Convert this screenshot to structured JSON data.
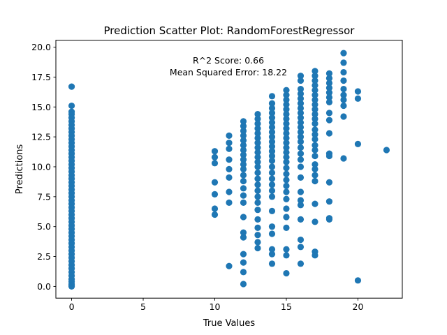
{
  "chart_data": {
    "type": "scatter",
    "title": "Prediction Scatter Plot: RandomForestRegressor",
    "xlabel": "True Values",
    "ylabel": "Predictions",
    "xlim": [
      -1.1,
      23.1
    ],
    "ylim": [
      -0.98,
      20.58
    ],
    "xticks": [
      0,
      5,
      10,
      15,
      20
    ],
    "yticks": [
      0.0,
      2.5,
      5.0,
      7.5,
      10.0,
      12.5,
      15.0,
      17.5,
      20.0
    ],
    "grid": false,
    "legend": "none",
    "marker_color": "#1f77b4",
    "annotations": [
      "R^2 Score: 0.66",
      "Mean Squared Error: 18.22"
    ],
    "points": [
      [
        0,
        16.7
      ],
      [
        0,
        15.1
      ],
      [
        0,
        14.6
      ],
      [
        0,
        14.4
      ],
      [
        0,
        14.1
      ],
      [
        0,
        13.8
      ],
      [
        0,
        13.5
      ],
      [
        0,
        13.2
      ],
      [
        0,
        12.9
      ],
      [
        0,
        12.6
      ],
      [
        0,
        12.3
      ],
      [
        0,
        12.0
      ],
      [
        0,
        11.7
      ],
      [
        0,
        11.4
      ],
      [
        0,
        11.1
      ],
      [
        0,
        10.8
      ],
      [
        0,
        10.5
      ],
      [
        0,
        10.2
      ],
      [
        0,
        9.9
      ],
      [
        0,
        9.6
      ],
      [
        0,
        9.3
      ],
      [
        0,
        9.0
      ],
      [
        0,
        8.7
      ],
      [
        0,
        8.4
      ],
      [
        0,
        8.1
      ],
      [
        0,
        7.8
      ],
      [
        0,
        7.5
      ],
      [
        0,
        7.2
      ],
      [
        0,
        6.9
      ],
      [
        0,
        6.6
      ],
      [
        0,
        6.3
      ],
      [
        0,
        6.0
      ],
      [
        0,
        5.7
      ],
      [
        0,
        5.4
      ],
      [
        0,
        5.1
      ],
      [
        0,
        4.8
      ],
      [
        0,
        4.5
      ],
      [
        0,
        4.2
      ],
      [
        0,
        3.9
      ],
      [
        0,
        3.6
      ],
      [
        0,
        3.3
      ],
      [
        0,
        3.0
      ],
      [
        0,
        2.7
      ],
      [
        0,
        2.4
      ],
      [
        0,
        2.1
      ],
      [
        0,
        1.8
      ],
      [
        0,
        1.5
      ],
      [
        0,
        1.2
      ],
      [
        0,
        0.9
      ],
      [
        0,
        0.6
      ],
      [
        0,
        0.4
      ],
      [
        0,
        0.2
      ],
      [
        0,
        0.1
      ],
      [
        0,
        0.0
      ],
      [
        10,
        11.3
      ],
      [
        10,
        10.8
      ],
      [
        10,
        10.3
      ],
      [
        10,
        8.7
      ],
      [
        10,
        7.7
      ],
      [
        10,
        6.5
      ],
      [
        10,
        6.0
      ],
      [
        11,
        12.6
      ],
      [
        11,
        12.0
      ],
      [
        11,
        11.5
      ],
      [
        11,
        10.6
      ],
      [
        11,
        9.8
      ],
      [
        11,
        9.1
      ],
      [
        11,
        7.9
      ],
      [
        11,
        7.0
      ],
      [
        11,
        1.7
      ],
      [
        12,
        13.8
      ],
      [
        12,
        13.4
      ],
      [
        12,
        13.0
      ],
      [
        12,
        12.6
      ],
      [
        12,
        12.2
      ],
      [
        12,
        11.8
      ],
      [
        12,
        11.4
      ],
      [
        12,
        11.0
      ],
      [
        12,
        10.6
      ],
      [
        12,
        10.2
      ],
      [
        12,
        9.8
      ],
      [
        12,
        9.3
      ],
      [
        12,
        8.8
      ],
      [
        12,
        8.2
      ],
      [
        12,
        7.6
      ],
      [
        12,
        7.0
      ],
      [
        12,
        5.8
      ],
      [
        12,
        4.5
      ],
      [
        12,
        4.1
      ],
      [
        12,
        2.7
      ],
      [
        12,
        2.0
      ],
      [
        12,
        1.2
      ],
      [
        12,
        0.2
      ],
      [
        13,
        14.4
      ],
      [
        13,
        14.0
      ],
      [
        13,
        13.6
      ],
      [
        13,
        13.2
      ],
      [
        13,
        12.8
      ],
      [
        13,
        12.4
      ],
      [
        13,
        12.0
      ],
      [
        13,
        11.6
      ],
      [
        13,
        11.2
      ],
      [
        13,
        10.8
      ],
      [
        13,
        10.4
      ],
      [
        13,
        10.0
      ],
      [
        13,
        9.5
      ],
      [
        13,
        9.0
      ],
      [
        13,
        8.5
      ],
      [
        13,
        8.0
      ],
      [
        13,
        7.5
      ],
      [
        13,
        7.0
      ],
      [
        13,
        6.4
      ],
      [
        13,
        5.6
      ],
      [
        13,
        4.9
      ],
      [
        13,
        4.3
      ],
      [
        13,
        3.7
      ],
      [
        13,
        3.2
      ],
      [
        14,
        15.9
      ],
      [
        14,
        15.3
      ],
      [
        14,
        14.9
      ],
      [
        14,
        14.5
      ],
      [
        14,
        14.1
      ],
      [
        14,
        13.7
      ],
      [
        14,
        13.3
      ],
      [
        14,
        12.9
      ],
      [
        14,
        12.5
      ],
      [
        14,
        12.1
      ],
      [
        14,
        11.7
      ],
      [
        14,
        11.3
      ],
      [
        14,
        10.9
      ],
      [
        14,
        10.5
      ],
      [
        14,
        10.0
      ],
      [
        14,
        9.5
      ],
      [
        14,
        9.0
      ],
      [
        14,
        8.5
      ],
      [
        14,
        8.0
      ],
      [
        14,
        7.5
      ],
      [
        14,
        6.3
      ],
      [
        14,
        5.0
      ],
      [
        14,
        4.4
      ],
      [
        14,
        3.1
      ],
      [
        14,
        2.7
      ],
      [
        14,
        1.9
      ],
      [
        15,
        16.4
      ],
      [
        15,
        16.0
      ],
      [
        15,
        15.6
      ],
      [
        15,
        15.2
      ],
      [
        15,
        14.8
      ],
      [
        15,
        14.4
      ],
      [
        15,
        14.0
      ],
      [
        15,
        13.6
      ],
      [
        15,
        13.2
      ],
      [
        15,
        12.8
      ],
      [
        15,
        12.4
      ],
      [
        15,
        12.0
      ],
      [
        15,
        11.6
      ],
      [
        15,
        11.2
      ],
      [
        15,
        10.8
      ],
      [
        15,
        10.4
      ],
      [
        15,
        9.9
      ],
      [
        15,
        9.4
      ],
      [
        15,
        8.9
      ],
      [
        15,
        8.4
      ],
      [
        15,
        7.9
      ],
      [
        15,
        7.3
      ],
      [
        15,
        6.5
      ],
      [
        15,
        5.8
      ],
      [
        15,
        4.9
      ],
      [
        15,
        3.1
      ],
      [
        15,
        2.6
      ],
      [
        15,
        1.1
      ],
      [
        16,
        17.6
      ],
      [
        16,
        17.2
      ],
      [
        16,
        16.5
      ],
      [
        16,
        16.1
      ],
      [
        16,
        15.7
      ],
      [
        16,
        15.3
      ],
      [
        16,
        14.9
      ],
      [
        16,
        14.5
      ],
      [
        16,
        14.1
      ],
      [
        16,
        13.7
      ],
      [
        16,
        13.3
      ],
      [
        16,
        12.9
      ],
      [
        16,
        12.5
      ],
      [
        16,
        12.1
      ],
      [
        16,
        11.6
      ],
      [
        16,
        11.1
      ],
      [
        16,
        10.6
      ],
      [
        16,
        10.0
      ],
      [
        16,
        9.1
      ],
      [
        16,
        7.9
      ],
      [
        16,
        7.2
      ],
      [
        16,
        6.8
      ],
      [
        16,
        5.6
      ],
      [
        16,
        3.9
      ],
      [
        16,
        3.3
      ],
      [
        16,
        1.9
      ],
      [
        17,
        18.0
      ],
      [
        17,
        17.6
      ],
      [
        17,
        17.2
      ],
      [
        17,
        16.8
      ],
      [
        17,
        16.4
      ],
      [
        17,
        16.0
      ],
      [
        17,
        15.6
      ],
      [
        17,
        15.2
      ],
      [
        17,
        14.8
      ],
      [
        17,
        14.4
      ],
      [
        17,
        14.0
      ],
      [
        17,
        13.6
      ],
      [
        17,
        13.1
      ],
      [
        17,
        12.7
      ],
      [
        17,
        12.3
      ],
      [
        17,
        11.8
      ],
      [
        17,
        11.4
      ],
      [
        17,
        10.9
      ],
      [
        17,
        10.2
      ],
      [
        17,
        9.8
      ],
      [
        17,
        9.3
      ],
      [
        17,
        8.8
      ],
      [
        17,
        6.9
      ],
      [
        17,
        5.4
      ],
      [
        17,
        2.9
      ],
      [
        17,
        2.6
      ],
      [
        18,
        17.8
      ],
      [
        18,
        17.4
      ],
      [
        18,
        17.0
      ],
      [
        18,
        16.6
      ],
      [
        18,
        16.2
      ],
      [
        18,
        15.8
      ],
      [
        18,
        15.4
      ],
      [
        18,
        14.5
      ],
      [
        18,
        13.9
      ],
      [
        18,
        12.8
      ],
      [
        18,
        11.1
      ],
      [
        18,
        10.9
      ],
      [
        18,
        8.7
      ],
      [
        18,
        7.1
      ],
      [
        18,
        5.7
      ],
      [
        18,
        5.6
      ],
      [
        19,
        19.5
      ],
      [
        19,
        18.7
      ],
      [
        19,
        17.9
      ],
      [
        19,
        17.2
      ],
      [
        19,
        16.5
      ],
      [
        19,
        16.0
      ],
      [
        19,
        15.6
      ],
      [
        19,
        15.1
      ],
      [
        19,
        14.2
      ],
      [
        19,
        10.7
      ],
      [
        20,
        16.3
      ],
      [
        20,
        15.7
      ],
      [
        20,
        11.9
      ],
      [
        20,
        0.5
      ],
      [
        22,
        11.4
      ]
    ]
  }
}
